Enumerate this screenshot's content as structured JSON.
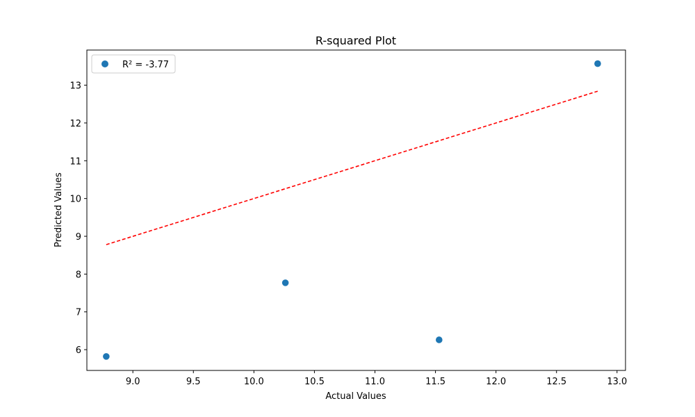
{
  "chart_data": {
    "type": "scatter",
    "title": "R-squared Plot",
    "xlabel": "Actual Values",
    "ylabel": "Predicted Values",
    "xlim": [
      8.62,
      13.07
    ],
    "ylim": [
      5.45,
      13.93
    ],
    "xticks": [
      9.0,
      9.5,
      10.0,
      10.5,
      11.0,
      11.5,
      12.0,
      12.5,
      13.0
    ],
    "xtick_labels": [
      "9.0",
      "9.5",
      "10.0",
      "10.5",
      "11.0",
      "11.5",
      "12.0",
      "12.5",
      "13.0"
    ],
    "yticks": [
      6,
      7,
      8,
      9,
      10,
      11,
      12,
      13
    ],
    "ytick_labels": [
      "6",
      "7",
      "8",
      "9",
      "10",
      "11",
      "12",
      "13"
    ],
    "grid": false,
    "legend_position": "top-left",
    "series": [
      {
        "name": "R² = -3.77",
        "kind": "scatter",
        "color": "#1f77b4",
        "x": [
          8.78,
          10.26,
          11.53,
          12.84
        ],
        "y": [
          5.82,
          7.77,
          6.26,
          13.57
        ]
      },
      {
        "kind": "line",
        "style": "dashed",
        "color": "#ff0000",
        "x": [
          8.78,
          12.84
        ],
        "y": [
          8.78,
          12.84
        ]
      }
    ]
  }
}
